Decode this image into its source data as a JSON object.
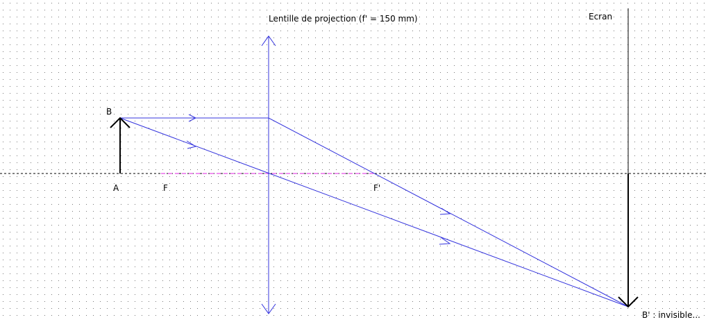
{
  "lens": {
    "label": "Lentille de projection (f' = 150 mm)"
  },
  "screen": {
    "label": "Ecran"
  },
  "points": {
    "B": "B",
    "A": "A",
    "F": "F",
    "F_prime": "F'",
    "B_prime": "B' : invisible..."
  }
}
